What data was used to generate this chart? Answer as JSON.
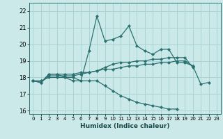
{
  "xlabel": "Humidex (Indice chaleur)",
  "ylabel": "",
  "xlim": [
    -0.5,
    23.5
  ],
  "ylim": [
    15.8,
    22.5
  ],
  "yticks": [
    16,
    17,
    18,
    19,
    20,
    21,
    22
  ],
  "xticks": [
    0,
    1,
    2,
    3,
    4,
    5,
    6,
    7,
    8,
    9,
    10,
    11,
    12,
    13,
    14,
    15,
    16,
    17,
    18,
    19,
    20,
    21,
    22,
    23
  ],
  "background_color": "#cce9e9",
  "grid_color": "#aad4d4",
  "line_color": "#2a7070",
  "series": [
    [
      17.8,
      17.7,
      18.2,
      18.2,
      18.0,
      18.0,
      17.8,
      19.6,
      21.7,
      20.2,
      20.3,
      20.5,
      21.1,
      19.9,
      19.6,
      19.4,
      19.7,
      19.7,
      18.9,
      18.9,
      18.7,
      17.6,
      17.7,
      null
    ],
    [
      17.8,
      17.7,
      18.2,
      18.2,
      18.2,
      18.2,
      18.3,
      18.3,
      18.4,
      18.5,
      18.5,
      18.6,
      18.7,
      18.7,
      18.8,
      18.8,
      18.9,
      18.9,
      19.0,
      19.0,
      18.7,
      null,
      null,
      null
    ],
    [
      17.8,
      17.7,
      18.1,
      18.1,
      18.1,
      18.1,
      18.2,
      18.3,
      18.4,
      18.6,
      18.8,
      18.9,
      18.9,
      19.0,
      19.0,
      19.1,
      19.1,
      19.2,
      19.2,
      19.2,
      18.6,
      null,
      null,
      null
    ],
    [
      17.8,
      17.8,
      18.0,
      18.0,
      18.0,
      17.8,
      17.8,
      17.8,
      17.8,
      17.5,
      17.2,
      16.9,
      16.7,
      16.5,
      16.4,
      16.3,
      16.2,
      16.1,
      16.1,
      null,
      null,
      null,
      null,
      null
    ]
  ]
}
